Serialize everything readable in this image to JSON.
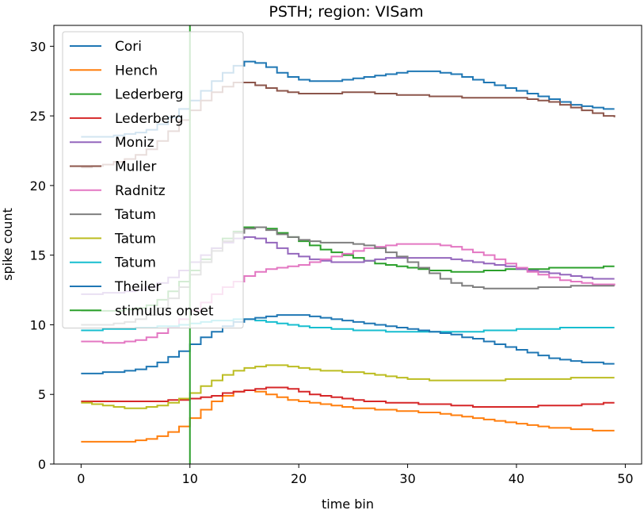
{
  "chart_data": {
    "type": "line",
    "drawstyle": "steps-post",
    "title": "PSTH; region: VISam",
    "xlabel": "time bin",
    "ylabel": "spike count",
    "xlim": [
      -2.5,
      51.5
    ],
    "ylim": [
      0,
      31.5
    ],
    "xticks": [
      0,
      10,
      20,
      30,
      40,
      50
    ],
    "yticks": [
      0,
      5,
      10,
      15,
      20,
      25,
      30
    ],
    "grid": false,
    "legend_position": "upper-left",
    "stimulus_onset": {
      "name": "stimulus onset",
      "x": 10,
      "color": "#2ca02c"
    },
    "series": [
      {
        "name": "Cori",
        "color": "#1f77b4",
        "values": [
          23.5,
          23.5,
          23.5,
          23.6,
          23.7,
          23.8,
          24.0,
          24.4,
          24.9,
          25.5,
          26.1,
          26.8,
          27.5,
          28.1,
          28.6,
          28.9,
          28.8,
          28.5,
          28.1,
          27.8,
          27.6,
          27.5,
          27.5,
          27.5,
          27.6,
          27.7,
          27.8,
          27.9,
          28.0,
          28.1,
          28.2,
          28.2,
          28.2,
          28.1,
          28.0,
          27.8,
          27.6,
          27.4,
          27.2,
          27.0,
          26.8,
          26.6,
          26.4,
          26.2,
          26.0,
          25.8,
          25.7,
          25.6,
          25.5,
          25.5
        ]
      },
      {
        "name": "Hench",
        "color": "#ff7f0e",
        "values": [
          1.6,
          1.6,
          1.6,
          1.6,
          1.6,
          1.7,
          1.8,
          2.0,
          2.3,
          2.7,
          3.3,
          3.9,
          4.5,
          4.9,
          5.2,
          5.3,
          5.2,
          5.0,
          4.8,
          4.6,
          4.5,
          4.4,
          4.3,
          4.2,
          4.1,
          4.0,
          4.0,
          3.9,
          3.9,
          3.8,
          3.8,
          3.7,
          3.7,
          3.6,
          3.5,
          3.4,
          3.3,
          3.2,
          3.1,
          3.0,
          2.9,
          2.8,
          2.7,
          2.6,
          2.6,
          2.5,
          2.5,
          2.4,
          2.4,
          2.4
        ]
      },
      {
        "name": "Lederberg",
        "color": "#2ca02c",
        "values": [
          11.0,
          11.0,
          11.0,
          11.0,
          11.1,
          11.2,
          11.4,
          11.8,
          12.4,
          13.1,
          13.9,
          14.7,
          15.5,
          16.2,
          16.7,
          17.0,
          17.0,
          16.9,
          16.6,
          16.3,
          16.0,
          15.7,
          15.4,
          15.2,
          15.0,
          14.8,
          14.6,
          14.4,
          14.3,
          14.2,
          14.1,
          14.0,
          13.9,
          13.9,
          13.8,
          13.8,
          13.8,
          13.9,
          13.9,
          14.0,
          14.0,
          14.0,
          14.0,
          14.1,
          14.1,
          14.1,
          14.1,
          14.1,
          14.2,
          14.2
        ]
      },
      {
        "name": "Lederberg",
        "color": "#d62728",
        "values": [
          4.5,
          4.5,
          4.5,
          4.5,
          4.5,
          4.5,
          4.5,
          4.5,
          4.6,
          4.6,
          4.7,
          4.8,
          4.9,
          5.1,
          5.2,
          5.3,
          5.4,
          5.5,
          5.5,
          5.4,
          5.2,
          5.0,
          4.9,
          4.8,
          4.7,
          4.6,
          4.5,
          4.5,
          4.4,
          4.4,
          4.4,
          4.3,
          4.3,
          4.3,
          4.2,
          4.2,
          4.1,
          4.1,
          4.1,
          4.1,
          4.1,
          4.1,
          4.2,
          4.2,
          4.2,
          4.2,
          4.3,
          4.3,
          4.4,
          4.4
        ]
      },
      {
        "name": "Moniz",
        "color": "#9467bd",
        "values": [
          12.2,
          12.2,
          12.3,
          12.3,
          12.4,
          12.5,
          12.7,
          13.0,
          13.4,
          13.9,
          14.5,
          15.0,
          15.5,
          15.9,
          16.2,
          16.3,
          16.2,
          15.9,
          15.5,
          15.1,
          14.9,
          14.7,
          14.6,
          14.5,
          14.5,
          14.5,
          14.6,
          14.7,
          14.8,
          14.8,
          14.8,
          14.8,
          14.8,
          14.8,
          14.7,
          14.6,
          14.5,
          14.4,
          14.3,
          14.2,
          14.0,
          13.9,
          13.8,
          13.7,
          13.6,
          13.5,
          13.4,
          13.3,
          13.3,
          13.3
        ]
      },
      {
        "name": "Muller",
        "color": "#8c564b",
        "values": [
          21.3,
          21.4,
          21.5,
          21.7,
          21.9,
          22.2,
          22.6,
          23.2,
          23.9,
          24.7,
          25.4,
          26.1,
          26.7,
          27.1,
          27.4,
          27.4,
          27.2,
          27.0,
          26.8,
          26.7,
          26.6,
          26.6,
          26.6,
          26.6,
          26.7,
          26.7,
          26.7,
          26.6,
          26.6,
          26.5,
          26.5,
          26.5,
          26.4,
          26.4,
          26.4,
          26.3,
          26.3,
          26.3,
          26.3,
          26.3,
          26.3,
          26.2,
          26.1,
          26.0,
          25.8,
          25.6,
          25.4,
          25.2,
          25.0,
          24.9
        ]
      },
      {
        "name": "Radnitz",
        "color": "#e377c2",
        "values": [
          8.8,
          8.8,
          8.7,
          8.7,
          8.8,
          8.9,
          9.1,
          9.4,
          9.8,
          10.4,
          11.0,
          11.6,
          12.2,
          12.7,
          13.1,
          13.5,
          13.8,
          14.0,
          14.1,
          14.2,
          14.3,
          14.5,
          14.7,
          14.9,
          15.1,
          15.3,
          15.5,
          15.6,
          15.7,
          15.8,
          15.8,
          15.8,
          15.8,
          15.7,
          15.6,
          15.4,
          15.2,
          15.0,
          14.7,
          14.4,
          14.1,
          13.8,
          13.6,
          13.4,
          13.2,
          13.1,
          13.0,
          12.9,
          12.9,
          12.8
        ]
      },
      {
        "name": "Tatum",
        "color": "#7f7f7f",
        "values": [
          10.0,
          10.0,
          10.0,
          10.1,
          10.2,
          10.4,
          10.7,
          11.2,
          11.9,
          12.7,
          13.6,
          14.5,
          15.3,
          16.0,
          16.6,
          16.9,
          17.0,
          16.8,
          16.5,
          16.3,
          16.1,
          16.0,
          15.9,
          15.9,
          15.9,
          15.8,
          15.7,
          15.5,
          15.2,
          14.9,
          14.5,
          14.1,
          13.7,
          13.3,
          13.0,
          12.8,
          12.7,
          12.6,
          12.6,
          12.6,
          12.6,
          12.6,
          12.7,
          12.7,
          12.7,
          12.8,
          12.8,
          12.8,
          12.8,
          12.8
        ]
      },
      {
        "name": "Tatum",
        "color": "#bcbd22",
        "values": [
          4.4,
          4.3,
          4.2,
          4.1,
          4.0,
          4.0,
          4.1,
          4.2,
          4.4,
          4.7,
          5.1,
          5.6,
          6.0,
          6.4,
          6.7,
          6.9,
          7.0,
          7.1,
          7.1,
          7.0,
          6.9,
          6.8,
          6.7,
          6.7,
          6.6,
          6.6,
          6.5,
          6.4,
          6.3,
          6.2,
          6.1,
          6.1,
          6.0,
          6.0,
          6.0,
          6.0,
          6.0,
          6.0,
          6.0,
          6.1,
          6.1,
          6.1,
          6.1,
          6.1,
          6.1,
          6.2,
          6.2,
          6.2,
          6.2,
          6.2
        ]
      },
      {
        "name": "Tatum",
        "color": "#17becf",
        "values": [
          9.6,
          9.6,
          9.7,
          9.7,
          9.7,
          9.8,
          9.8,
          9.9,
          9.9,
          10.0,
          10.1,
          10.2,
          10.3,
          10.3,
          10.4,
          10.4,
          10.3,
          10.2,
          10.1,
          10.0,
          9.9,
          9.8,
          9.8,
          9.7,
          9.7,
          9.6,
          9.6,
          9.6,
          9.5,
          9.5,
          9.5,
          9.5,
          9.5,
          9.5,
          9.5,
          9.5,
          9.5,
          9.6,
          9.6,
          9.6,
          9.7,
          9.7,
          9.7,
          9.7,
          9.8,
          9.8,
          9.8,
          9.8,
          9.8,
          9.8
        ]
      },
      {
        "name": "Theiler",
        "color": "#1f77b4",
        "values": [
          6.5,
          6.5,
          6.6,
          6.6,
          6.7,
          6.8,
          7.0,
          7.3,
          7.7,
          8.1,
          8.6,
          9.1,
          9.5,
          9.9,
          10.2,
          10.4,
          10.5,
          10.6,
          10.7,
          10.7,
          10.7,
          10.6,
          10.5,
          10.4,
          10.3,
          10.2,
          10.1,
          10.0,
          9.9,
          9.8,
          9.7,
          9.6,
          9.5,
          9.4,
          9.3,
          9.1,
          9.0,
          8.8,
          8.6,
          8.4,
          8.2,
          8.0,
          7.8,
          7.6,
          7.5,
          7.4,
          7.3,
          7.3,
          7.2,
          7.2
        ]
      }
    ]
  }
}
